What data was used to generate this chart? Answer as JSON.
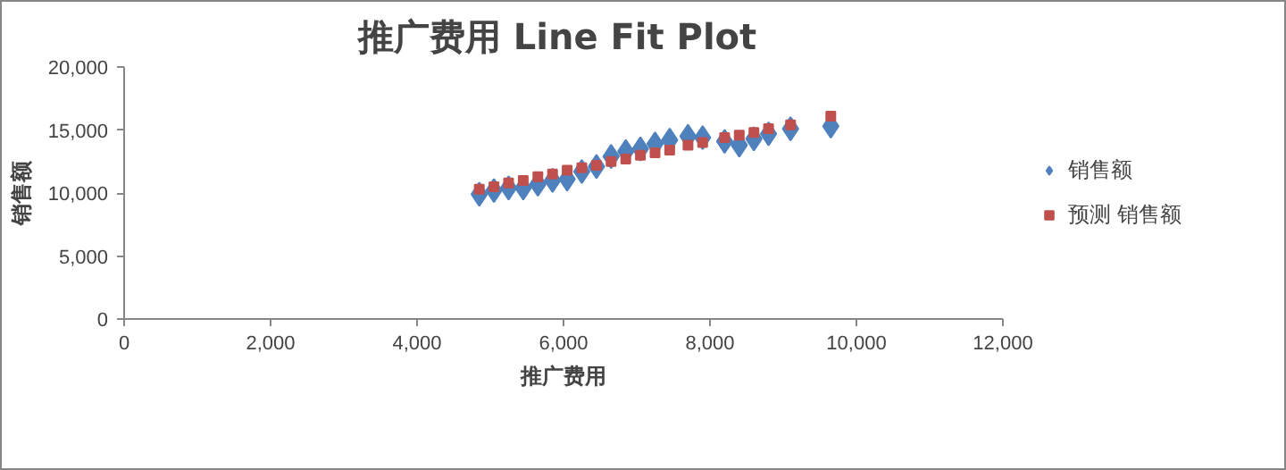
{
  "chart_data": {
    "type": "scatter",
    "title": "推广费用 Line Fit  Plot",
    "xlabel": "推广费用",
    "ylabel": "销售额",
    "x": [
      4850,
      5050,
      5250,
      5450,
      5650,
      5850,
      6050,
      6250,
      6450,
      6650,
      6850,
      7050,
      7250,
      7450,
      7700,
      7900,
      8200,
      8400,
      8600,
      8800,
      9100,
      9650
    ],
    "series": [
      {
        "name": "销售额",
        "color": "#4f81bd",
        "marker": "diamond",
        "values": [
          9900,
          10200,
          10400,
          10400,
          10700,
          11000,
          11100,
          11700,
          12100,
          12900,
          13300,
          13500,
          13900,
          14200,
          14500,
          14400,
          14100,
          13800,
          14300,
          14700,
          15100,
          15300
        ]
      },
      {
        "name": "预测 销售额",
        "color": "#c0504d",
        "marker": "square",
        "values": [
          10300,
          10500,
          10800,
          11000,
          11300,
          11500,
          11800,
          12000,
          12200,
          12500,
          12700,
          13000,
          13200,
          13400,
          13800,
          14000,
          14400,
          14600,
          14800,
          15100,
          15400,
          16100
        ]
      }
    ],
    "xlim": [
      0,
      12000
    ],
    "xticks": [
      {
        "value": 0,
        "label": "0"
      },
      {
        "value": 2000,
        "label": "2,000"
      },
      {
        "value": 4000,
        "label": "4,000"
      },
      {
        "value": 6000,
        "label": "6,000"
      },
      {
        "value": 8000,
        "label": "8,000"
      },
      {
        "value": 10000,
        "label": "10,000"
      },
      {
        "value": 12000,
        "label": "12,000"
      }
    ],
    "ylim": [
      0,
      20000
    ],
    "yticks": [
      {
        "value": 0,
        "label": "0"
      },
      {
        "value": 5000,
        "label": "5,000"
      },
      {
        "value": 10000,
        "label": "10,000"
      },
      {
        "value": 15000,
        "label": "15,000"
      },
      {
        "value": 20000,
        "label": "20,000"
      }
    ],
    "grid": false,
    "legend": "right"
  }
}
